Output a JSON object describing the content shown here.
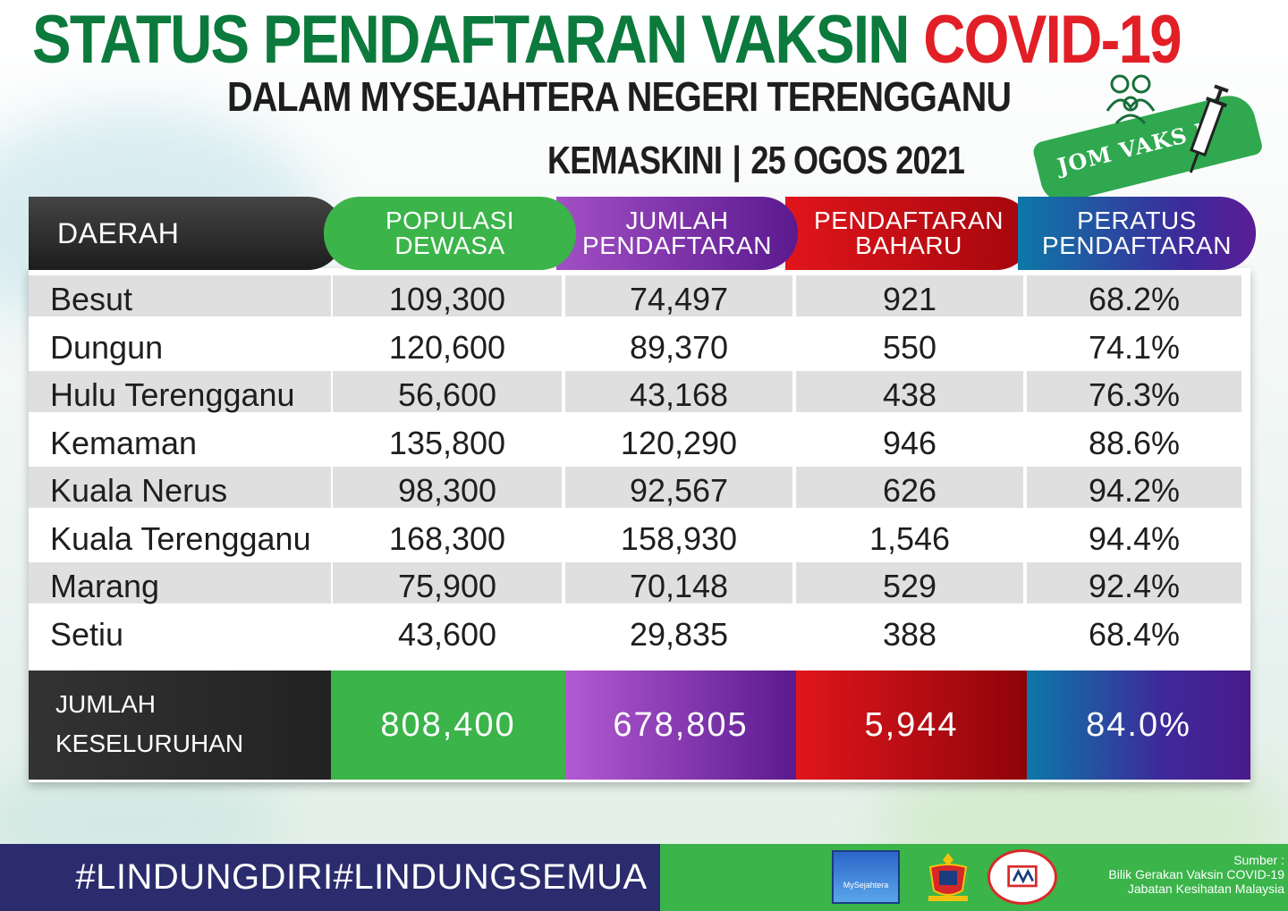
{
  "header": {
    "title_main": "STATUS PENDAFTARAN VAKSIN ",
    "title_highlight": "COVID-19",
    "subtitle": "DALAM MYSEJAHTERA NEGERI TERENGGANU",
    "updated_label": "KEMASKINI",
    "updated_sep": "|",
    "updated_date": "25 OGOS 2021"
  },
  "badge": {
    "text": "JOM VAKS  N",
    "icon_people": "family-icon",
    "icon_syringe": "syringe-icon"
  },
  "table": {
    "headers": {
      "daerah": "DAERAH",
      "populasi": [
        "POPULASI",
        "DEWASA"
      ],
      "jumlah": [
        "JUMLAH",
        "PENDAFTARAN"
      ],
      "baharu": [
        "PENDAFTARAN",
        "BAHARU"
      ],
      "peratus": [
        "PERATUS",
        "PENDAFTARAN"
      ]
    },
    "rows": [
      {
        "daerah": "Besut",
        "populasi": "109,300",
        "jumlah": "74,497",
        "baharu": "921",
        "peratus": "68.2%"
      },
      {
        "daerah": "Dungun",
        "populasi": "120,600",
        "jumlah": "89,370",
        "baharu": "550",
        "peratus": "74.1%"
      },
      {
        "daerah": "Hulu Terengganu",
        "populasi": "56,600",
        "jumlah": "43,168",
        "baharu": "438",
        "peratus": "76.3%"
      },
      {
        "daerah": "Kemaman",
        "populasi": "135,800",
        "jumlah": "120,290",
        "baharu": "946",
        "peratus": "88.6%"
      },
      {
        "daerah": "Kuala Nerus",
        "populasi": "98,300",
        "jumlah": "92,567",
        "baharu": "626",
        "peratus": "94.2%"
      },
      {
        "daerah": "Kuala Terengganu",
        "populasi": "168,300",
        "jumlah": "158,930",
        "baharu": "1,546",
        "peratus": "94.4%"
      },
      {
        "daerah": "Marang",
        "populasi": "75,900",
        "jumlah": "70,148",
        "baharu": "529",
        "peratus": "92.4%"
      },
      {
        "daerah": "Setiu",
        "populasi": "43,600",
        "jumlah": "29,835",
        "baharu": "388",
        "peratus": "68.4%"
      }
    ],
    "total": {
      "label_line1": "JUMLAH",
      "label_line2": "KESELURUHAN",
      "populasi": "808,400",
      "jumlah": "678,805",
      "baharu": "5,944",
      "peratus": "84.0%"
    }
  },
  "footer": {
    "hashtag": "#LINDUNGDIRI#LINDUNGSEMUA",
    "logo_mysejahtera": "MySejahtera",
    "source_label": "Sumber :",
    "source_line1": "Bilik Gerakan Vaksin COVID-19",
    "source_line2": "Jabatan Kesihatan Malaysia"
  },
  "colors": {
    "green": "#3bb44a",
    "title_green": "#0b7a3c",
    "red": "#e21f26",
    "navy": "#2a2c6d"
  }
}
